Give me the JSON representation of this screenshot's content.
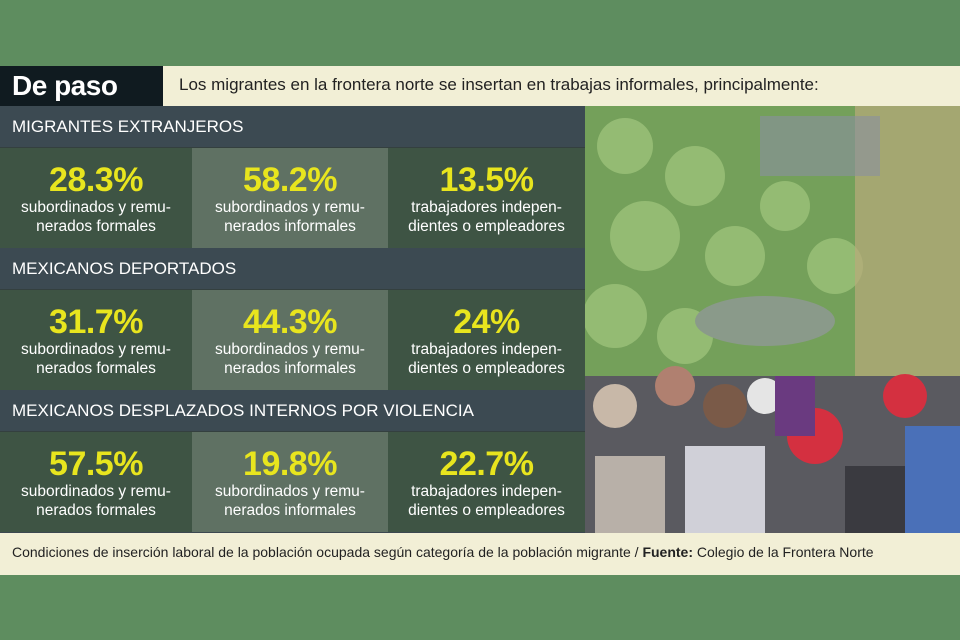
{
  "title": "De paso",
  "intro": "Los migrantes en la frontera norte se insertan en trabajas informales, principalmente:",
  "sections": [
    {
      "heading": "MIGRANTES EXTRANJEROS",
      "cards": [
        {
          "value": "28.3%",
          "line1": "subordinados y remu-",
          "line2": "nerados formales"
        },
        {
          "value": "58.2%",
          "line1": "subordinados y remu-",
          "line2": "nerados informales"
        },
        {
          "value": "13.5%",
          "line1": "trabajadores indepen-",
          "line2": "dientes o empleadores"
        }
      ]
    },
    {
      "heading": "MEXICANOS DEPORTADOS",
      "cards": [
        {
          "value": "31.7%",
          "line1": "subordinados y remu-",
          "line2": "nerados formales"
        },
        {
          "value": "44.3%",
          "line1": "subordinados y remu-",
          "line2": "nerados informales"
        },
        {
          "value": "24%",
          "line1": "trabajadores indepen-",
          "line2": "dientes o empleadores"
        }
      ]
    },
    {
      "heading": "MEXICANOS DESPLAZADOS INTERNOS POR VIOLENCIA",
      "cards": [
        {
          "value": "57.5%",
          "line1": "subordinados y remu-",
          "line2": "nerados formales"
        },
        {
          "value": "19.8%",
          "line1": "subordinados y remu-",
          "line2": "nerados informales"
        },
        {
          "value": "22.7%",
          "line1": "trabajadores indepen-",
          "line2": "dientes o empleadores"
        }
      ]
    }
  ],
  "footer": {
    "caption": "Condiciones de inserción laboral de la población ocupada según categoría de la población migrante / ",
    "source_label": "Fuente:",
    "source": " Colegio de la Frontera Norte"
  }
}
